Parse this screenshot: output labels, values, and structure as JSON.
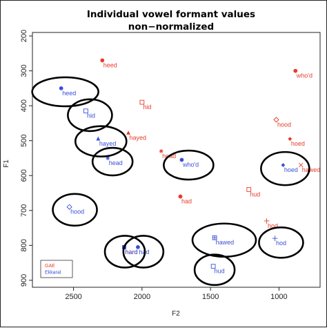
{
  "chart_data": {
    "type": "scatter",
    "title": "Individual vowel formant values",
    "subtitle": "non−normalized",
    "xlabel": "F2",
    "ylabel": "F1",
    "xlim": [
      2800,
      700
    ],
    "ylim": [
      920,
      190
    ],
    "x_reversed": true,
    "y_reversed": true,
    "xticks": [
      "2500",
      "2000",
      "1500",
      "1000"
    ],
    "xtick_values": [
      2500,
      2000,
      1500,
      1000
    ],
    "yticks": [
      "200",
      "300",
      "400",
      "500",
      "600",
      "700",
      "800",
      "900"
    ],
    "ytick_values": [
      200,
      300,
      400,
      500,
      600,
      700,
      800,
      900
    ],
    "grid": false,
    "legend": {
      "position": "bottom-left",
      "entries": [
        {
          "name": "GAE",
          "color": "#e83a2a"
        },
        {
          "name": "Ekkaral",
          "color": "#3a4fd8"
        }
      ]
    },
    "series": [
      {
        "name": "GAE",
        "color": "#e83a2a",
        "points": [
          {
            "label": "heed",
            "x": 2290,
            "y": 270,
            "marker": "filled-circle"
          },
          {
            "label": "who'd",
            "x": 880,
            "y": 300,
            "marker": "filled-circle"
          },
          {
            "label": "hid",
            "x": 2000,
            "y": 390,
            "marker": "open-square"
          },
          {
            "label": "hood",
            "x": 1020,
            "y": 440,
            "marker": "open-diamond"
          },
          {
            "label": "hayed",
            "x": 2100,
            "y": 478,
            "marker": "filled-triangle"
          },
          {
            "label": "hoed",
            "x": 920,
            "y": 495,
            "marker": "filled-diamond"
          },
          {
            "label": "head",
            "x": 1860,
            "y": 530,
            "marker": "asterisk"
          },
          {
            "label": "hawed",
            "x": 840,
            "y": 570,
            "marker": "x-cross"
          },
          {
            "label": "hud",
            "x": 1220,
            "y": 640,
            "marker": "open-square"
          },
          {
            "label": "had",
            "x": 1720,
            "y": 660,
            "marker": "filled-circle"
          },
          {
            "label": "hod",
            "x": 1090,
            "y": 730,
            "marker": "plus"
          },
          {
            "label": "hard",
            "x": 2130,
            "y": 805,
            "marker": "filled-square"
          }
        ]
      },
      {
        "name": "Ekkaral",
        "color": "#3a4fd8",
        "points": [
          {
            "label": "heed",
            "x": 2590,
            "y": 350,
            "marker": "filled-circle"
          },
          {
            "label": "hid",
            "x": 2410,
            "y": 415,
            "marker": "open-square"
          },
          {
            "label": "hayed",
            "x": 2320,
            "y": 495,
            "marker": "filled-triangle"
          },
          {
            "label": "head",
            "x": 2250,
            "y": 550,
            "marker": "asterisk"
          },
          {
            "label": "who'd",
            "x": 1710,
            "y": 555,
            "marker": "filled-circle"
          },
          {
            "label": "hoed",
            "x": 970,
            "y": 570,
            "marker": "filled-diamond"
          },
          {
            "label": "hood",
            "x": 2530,
            "y": 690,
            "marker": "open-diamond"
          },
          {
            "label": "hawed",
            "x": 1470,
            "y": 778,
            "marker": "square-plus"
          },
          {
            "label": "hod",
            "x": 1030,
            "y": 780,
            "marker": "plus"
          },
          {
            "label": "hard",
            "x": 2130,
            "y": 805,
            "marker": "filled-square"
          },
          {
            "label": "had",
            "x": 2030,
            "y": 805,
            "marker": "filled-circle"
          },
          {
            "label": "hud",
            "x": 1480,
            "y": 860,
            "marker": "open-square"
          }
        ]
      }
    ],
    "highlights": [
      {
        "x": 2560,
        "y": 360,
        "rx": 48,
        "ry": 21
      },
      {
        "x": 2380,
        "y": 427,
        "rx": 32,
        "ry": 23
      },
      {
        "x": 2300,
        "y": 502,
        "rx": 37,
        "ry": 22
      },
      {
        "x": 2215,
        "y": 560,
        "rx": 29,
        "ry": 20
      },
      {
        "x": 1660,
        "y": 570,
        "rx": 36,
        "ry": 21
      },
      {
        "x": 955,
        "y": 580,
        "rx": 35,
        "ry": 24
      },
      {
        "x": 2490,
        "y": 698,
        "rx": 32,
        "ry": 23
      },
      {
        "x": 1400,
        "y": 785,
        "rx": 46,
        "ry": 24
      },
      {
        "x": 985,
        "y": 792,
        "rx": 32,
        "ry": 22
      },
      {
        "x": 2125,
        "y": 818,
        "rx": 29,
        "ry": 23
      },
      {
        "x": 1990,
        "y": 818,
        "rx": 29,
        "ry": 23
      },
      {
        "x": 1470,
        "y": 870,
        "rx": 29,
        "ry": 22
      }
    ]
  }
}
